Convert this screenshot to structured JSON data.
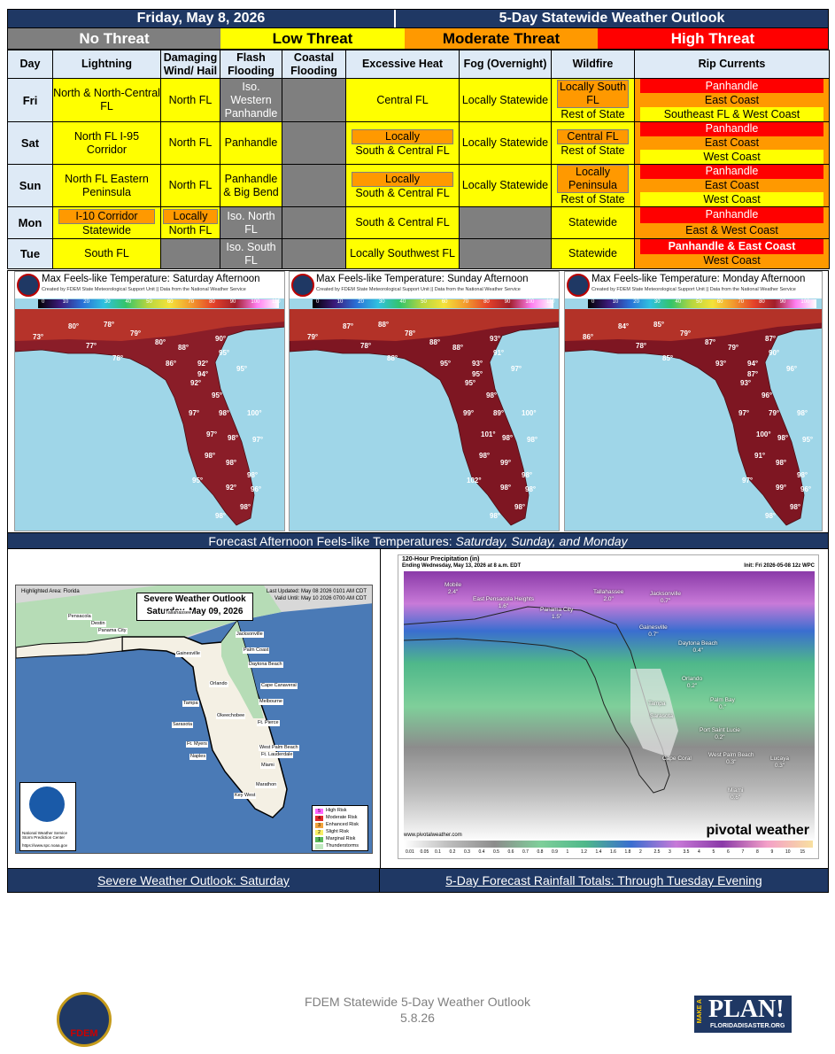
{
  "header": {
    "date": "Friday, May 8, 2026",
    "title": "5-Day Statewide Weather Outlook"
  },
  "legend": {
    "none": "No Threat",
    "low": "Low Threat",
    "moderate": "Moderate Threat",
    "high": "High Threat"
  },
  "colors": {
    "header": "#1f3864",
    "low": "#ffff00",
    "moderate": "#ff9900",
    "high": "#ff0000",
    "none": "#7f7f7f",
    "label_bg": "#deeaf6"
  },
  "table": {
    "columns": [
      "Day",
      "Lightning",
      "Damaging Wind/ Hail",
      "Flash Flooding",
      "Coastal Flooding",
      "Excessive Heat",
      "Fog (Overnight)",
      "Wildfire",
      "Rip Currents"
    ],
    "rows": [
      {
        "day": "Fri",
        "lightning": "North & North-Central FL",
        "wind": "North FL",
        "flash": "Iso. Western Panhandle",
        "heat": "Central FL",
        "fog": "Locally Statewide",
        "wildfire_a": "Locally South FL",
        "wildfire_b": "Rest of State",
        "rip_a": "Panhandle",
        "rip_b": "East Coast",
        "rip_c": "Southeast FL & West Coast"
      },
      {
        "day": "Sat",
        "lightning": "North FL I-95 Corridor",
        "wind": "North FL",
        "flash": "Panhandle",
        "heat_a": "Locally",
        "heat_b": "South & Central FL",
        "fog": "Locally Statewide",
        "wildfire_a": "Central FL",
        "wildfire_b": "Rest of State",
        "rip_a": "Panhandle",
        "rip_b": "East Coast",
        "rip_c": "West Coast"
      },
      {
        "day": "Sun",
        "lightning": "North FL Eastern Peninsula",
        "wind": "North FL",
        "flash": "Panhandle & Big Bend",
        "heat_a": "Locally",
        "heat_b": "South & Central FL",
        "fog": "Locally Statewide",
        "wildfire_a": "Locally Peninsula",
        "wildfire_b": "Rest of State",
        "rip_a": "Panhandle",
        "rip_b": "East Coast",
        "rip_c": "West Coast"
      },
      {
        "day": "Mon",
        "lightning_a": "I-10 Corridor",
        "lightning_b": "Statewide",
        "wind_a": "Locally",
        "wind_b": "North FL",
        "flash": "Iso. North FL",
        "heat": "South & Central FL",
        "wildfire": "Statewide",
        "rip_a": "Panhandle",
        "rip_b": "East & West Coast"
      },
      {
        "day": "Tue",
        "lightning": "South FL",
        "flash": "Iso. South FL",
        "heat": "Locally Southwest FL",
        "wildfire": "Statewide",
        "rip_a": "Panhandle & East Coast",
        "rip_b": "West Coast"
      }
    ]
  },
  "maps": [
    {
      "title": "Max Feels-like Temperature: Saturday Afternoon",
      "credit": "Created by FDEM State Meteorological Support Unit || Data from the National Weather Service",
      "temps": [
        "80°",
        "78°",
        "79°",
        "77°",
        "73°",
        "78°",
        "80°",
        "88°",
        "90°",
        "95°",
        "86°",
        "92°",
        "94°",
        "92°",
        "95°",
        "95°",
        "97°",
        "98°",
        "100°",
        "97°",
        "98°",
        "97°",
        "98°",
        "98°",
        "98°",
        "95°",
        "92°",
        "96°",
        "98°",
        "98°"
      ]
    },
    {
      "title": "Max Feels-like Temperature: Sunday Afternoon",
      "credit": "Created by FDEM State Meteorological Support Unit || Data from the National Weather Service",
      "temps": [
        "87°",
        "88°",
        "78°",
        "78°",
        "79°",
        "88°",
        "88°",
        "88°",
        "93°",
        "91°",
        "95°",
        "93°",
        "95°",
        "95°",
        "97°",
        "98°",
        "99°",
        "89°",
        "100°",
        "101°",
        "98°",
        "98°",
        "98°",
        "99°",
        "98°",
        "102°",
        "98°",
        "98°",
        "98°",
        "98°"
      ]
    },
    {
      "title": "Max Feels-like Temperature: Monday Afternoon",
      "credit": "Created by FDEM State Meteorological Support Unit || Data from the National Weather Service",
      "temps": [
        "84°",
        "85°",
        "79°",
        "78°",
        "86°",
        "85°",
        "87°",
        "79°",
        "87°",
        "90°",
        "93°",
        "94°",
        "87°",
        "93°",
        "96°",
        "96°",
        "97°",
        "79°",
        "98°",
        "100°",
        "98°",
        "95°",
        "91°",
        "98°",
        "98°",
        "97°",
        "99°",
        "96°",
        "98°",
        "98°"
      ]
    }
  ],
  "colorbar_ticks": [
    "0",
    "10",
    "20",
    "30",
    "40",
    "50",
    "60",
    "70",
    "80",
    "90",
    "100",
    "110"
  ],
  "caption_temps": {
    "lead": "Forecast Afternoon Feels-like Temperatures: ",
    "italic": "Saturday, Sunday, and Monday"
  },
  "spc": {
    "highlighted": "Highlighted Area: Florida",
    "updated": "Last Updated: May 08 2026 0101 AM CDT",
    "valid": "Valid Until: May 10 2026 0700 AM CDT",
    "title": "Severe Weather Outlook",
    "subtitle": "Saturday, May 09, 2026",
    "noaa_text": "National Weather Service Storm Prediction Center",
    "noaa_url": "https://www.spc.noaa.gov",
    "cities": [
      "Pensacola",
      "Destin",
      "Panama City",
      "Tallahassee",
      "Jacksonville",
      "Palm Coast",
      "Gainesville",
      "Daytona Beach",
      "Orlando",
      "Cape Canaveral",
      "Tampa",
      "Melbourne",
      "Sarasota",
      "Okeechobee",
      "Ft. Pierce",
      "Ft. Myers",
      "West Palm Beach",
      "Ft. Lauderdale",
      "Naples",
      "Miami",
      "Marathon",
      "Key West"
    ],
    "legend": [
      {
        "n": "5",
        "label": "High Risk",
        "color": "#ff66ff"
      },
      {
        "n": "4",
        "label": "Moderate Risk",
        "color": "#e02a2a"
      },
      {
        "n": "3",
        "label": "Enhanced Risk",
        "color": "#f2a33c"
      },
      {
        "n": "2",
        "label": "Slight Risk",
        "color": "#f8ee66"
      },
      {
        "n": "1",
        "label": "Marginal Risk",
        "color": "#5ab85a"
      },
      {
        "n": "",
        "label": "Thunderstorms",
        "color": "#bfe8bf"
      }
    ]
  },
  "rain": {
    "title": "120-Hour Precipitation (in)",
    "ending": "Ending Wednesday, May 13, 2026 at 8 a.m. EDT",
    "init": "Init: Fri 2026-05-08 12z WPC",
    "site": "www.pivotalweather.com",
    "brand": "pivotal weather",
    "points": [
      {
        "name": "Mobile",
        "val": "2.4\""
      },
      {
        "name": "East Pensacola Heights",
        "val": "1.6\""
      },
      {
        "name": "Tallahassee",
        "val": "2.0\""
      },
      {
        "name": "Panama City",
        "val": "1.5\""
      },
      {
        "name": "Jacksonville",
        "val": "0.7\""
      },
      {
        "name": "Gainesville",
        "val": "0.7\""
      },
      {
        "name": "Daytona Beach",
        "val": "0.4\""
      },
      {
        "name": "Orlando",
        "val": "0.2\""
      },
      {
        "name": "Palm Bay",
        "val": "0.\""
      },
      {
        "name": "Tampa",
        "val": ""
      },
      {
        "name": "Sarasota",
        "val": ""
      },
      {
        "name": "Port Saint Lucie",
        "val": "0.2\""
      },
      {
        "name": "Cape Coral",
        "val": ""
      },
      {
        "name": "West Palm Beach",
        "val": "0.3\""
      },
      {
        "name": "Lucaya",
        "val": "0.3\""
      },
      {
        "name": "Miami",
        "val": "0.6\""
      }
    ],
    "scale": [
      "0.01",
      "0.05",
      "0.1",
      "0.2",
      "0.3",
      "0.4",
      "0.5",
      "0.6",
      "0.7",
      "0.8",
      "0.9",
      "1",
      "1.2",
      "1.4",
      "1.6",
      "1.8",
      "2",
      "2.5",
      "3",
      "3.5",
      "4",
      "5",
      "6",
      "7",
      "8",
      "9",
      "10",
      "15"
    ]
  },
  "caption_low": {
    "left": "Severe Weather Outlook: Saturday",
    "right": "5-Day Forecast Rainfall Totals: Through Tuesday Evening"
  },
  "footer": {
    "line1": "FDEM Statewide 5-Day Weather Outlook",
    "line2": "5.8.26",
    "seal": "FDEM",
    "plan_big": "PLAN!",
    "plan_make": "MAKE A",
    "plan_url": "FLORIDADISASTER.ORG"
  }
}
